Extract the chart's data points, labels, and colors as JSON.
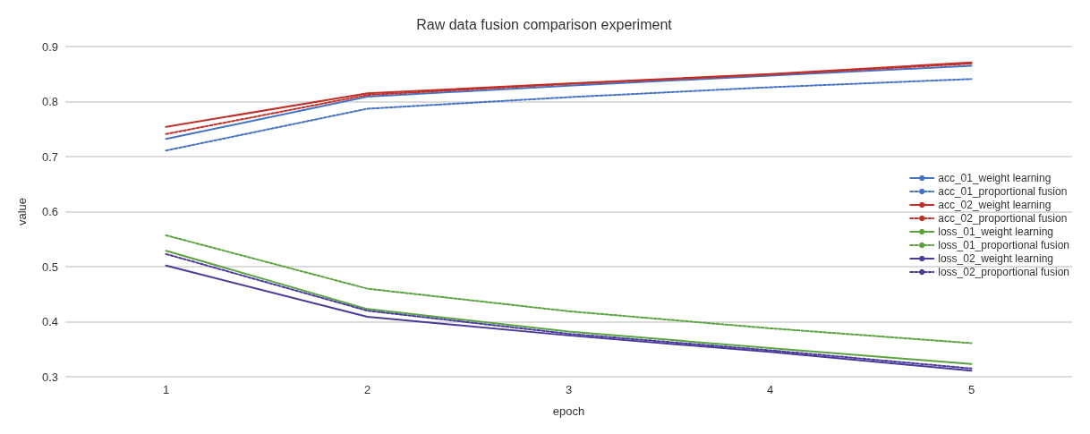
{
  "chart_data": {
    "type": "line",
    "title": "Raw data fusion comparison experiment",
    "xlabel": "epoch",
    "ylabel": "value",
    "categories": [
      "1",
      "2",
      "3",
      "4",
      "5"
    ],
    "ylim": [
      0.3,
      0.9
    ],
    "yticks": [
      0.3,
      0.4,
      0.5,
      0.6,
      0.7,
      0.8,
      0.9
    ],
    "grid": "y",
    "legend": "right",
    "marker": "none",
    "series": [
      {
        "name": "acc_01_weight learning",
        "color": "#4472c4",
        "line_style": "solid",
        "values": [
          0.732,
          0.809,
          0.829,
          0.847,
          0.865
        ]
      },
      {
        "name": "acc_01_proportional fusion",
        "color": "#4472c4",
        "line_style": "dashed",
        "values": [
          0.711,
          0.787,
          0.808,
          0.826,
          0.841
        ]
      },
      {
        "name": "acc_02_weight learning",
        "color": "#c0302a",
        "line_style": "solid",
        "values": [
          0.754,
          0.815,
          0.833,
          0.85,
          0.871
        ]
      },
      {
        "name": "acc_02_proportional fusion",
        "color": "#c0302a",
        "line_style": "dashed",
        "values": [
          0.741,
          0.812,
          0.832,
          0.849,
          0.869
        ]
      },
      {
        "name": "loss_01_weight learning",
        "color": "#5aa340",
        "line_style": "solid",
        "values": [
          0.529,
          0.423,
          0.382,
          0.352,
          0.323
        ]
      },
      {
        "name": "loss_01_proportional fusion",
        "color": "#5aa340",
        "line_style": "dashed",
        "values": [
          0.557,
          0.46,
          0.419,
          0.388,
          0.361
        ]
      },
      {
        "name": "loss_02_weight learning",
        "color": "#4a3a9a",
        "line_style": "solid",
        "values": [
          0.502,
          0.409,
          0.375,
          0.345,
          0.311
        ]
      },
      {
        "name": "loss_02_proportional fusion",
        "color": "#4a3a9a",
        "line_style": "dashed",
        "values": [
          0.523,
          0.42,
          0.378,
          0.348,
          0.315
        ]
      }
    ]
  }
}
